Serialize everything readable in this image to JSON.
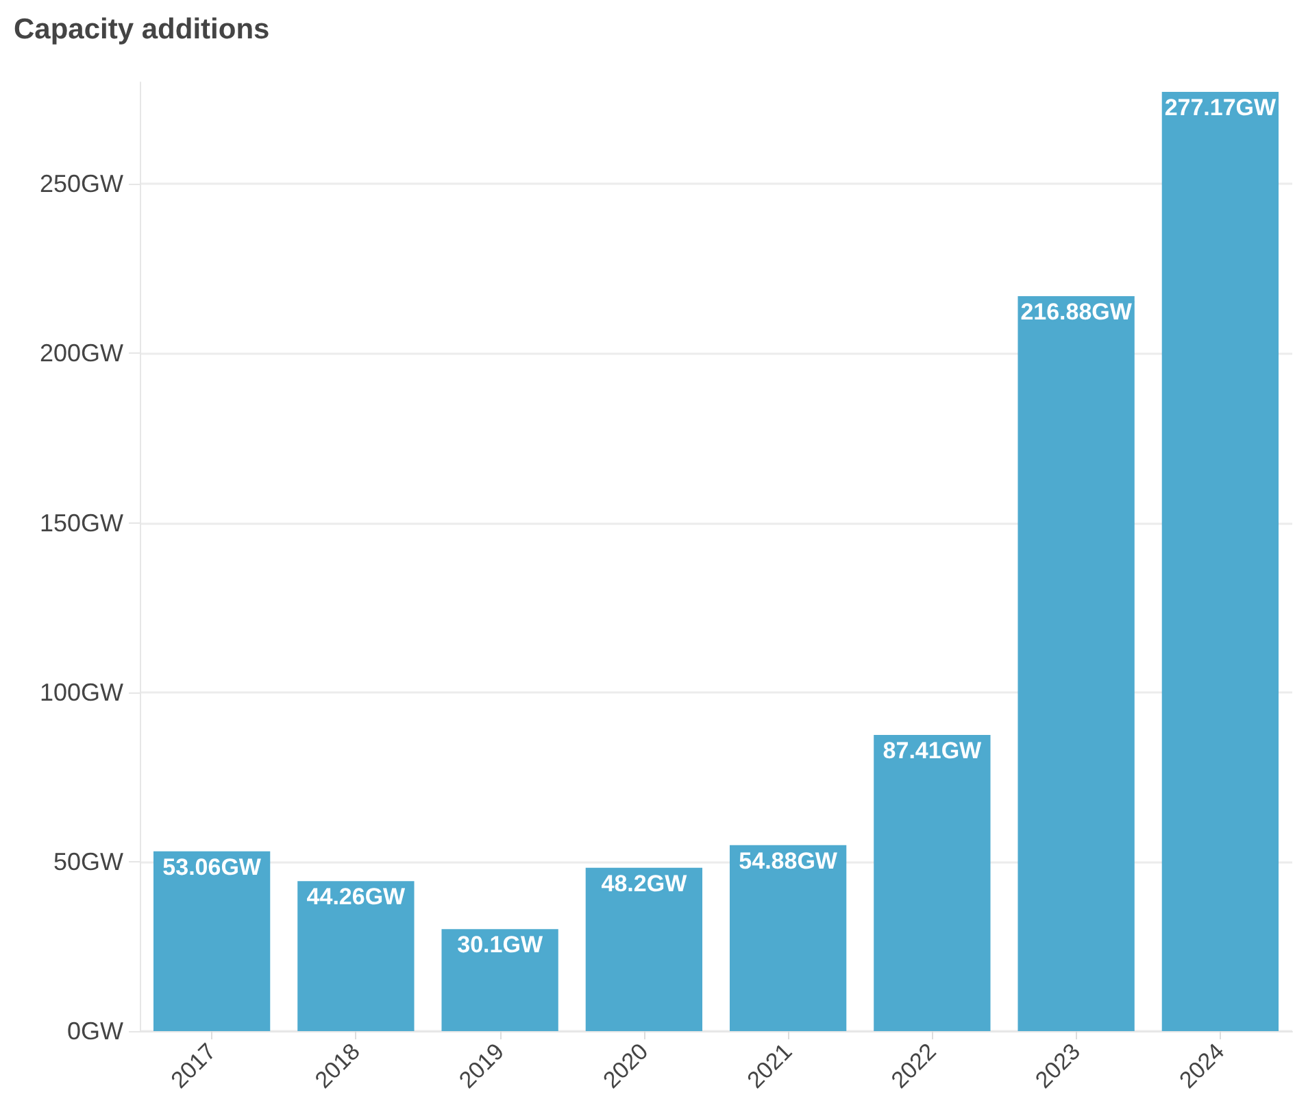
{
  "chart_data": {
    "type": "bar",
    "title": "Capacity additions",
    "categories": [
      "2017",
      "2018",
      "2019",
      "2020",
      "2021",
      "2022",
      "2023",
      "2024"
    ],
    "values": [
      53.06,
      44.26,
      30.1,
      48.2,
      54.88,
      87.41,
      216.88,
      277.17
    ],
    "value_labels": [
      "53.06GW",
      "44.26GW",
      "30.1GW",
      "48.2GW",
      "54.88GW",
      "87.41GW",
      "216.88GW",
      "277.17GW"
    ],
    "color": "#4eaacf",
    "ylim": [
      0,
      280
    ],
    "yticks": [
      {
        "value": 0,
        "label": "0GW"
      },
      {
        "value": 50,
        "label": "50GW"
      },
      {
        "value": 100,
        "label": "100GW"
      },
      {
        "value": 150,
        "label": "150GW"
      },
      {
        "value": 200,
        "label": "200GW"
      },
      {
        "value": 250,
        "label": "250GW"
      }
    ],
    "grid": "y"
  }
}
